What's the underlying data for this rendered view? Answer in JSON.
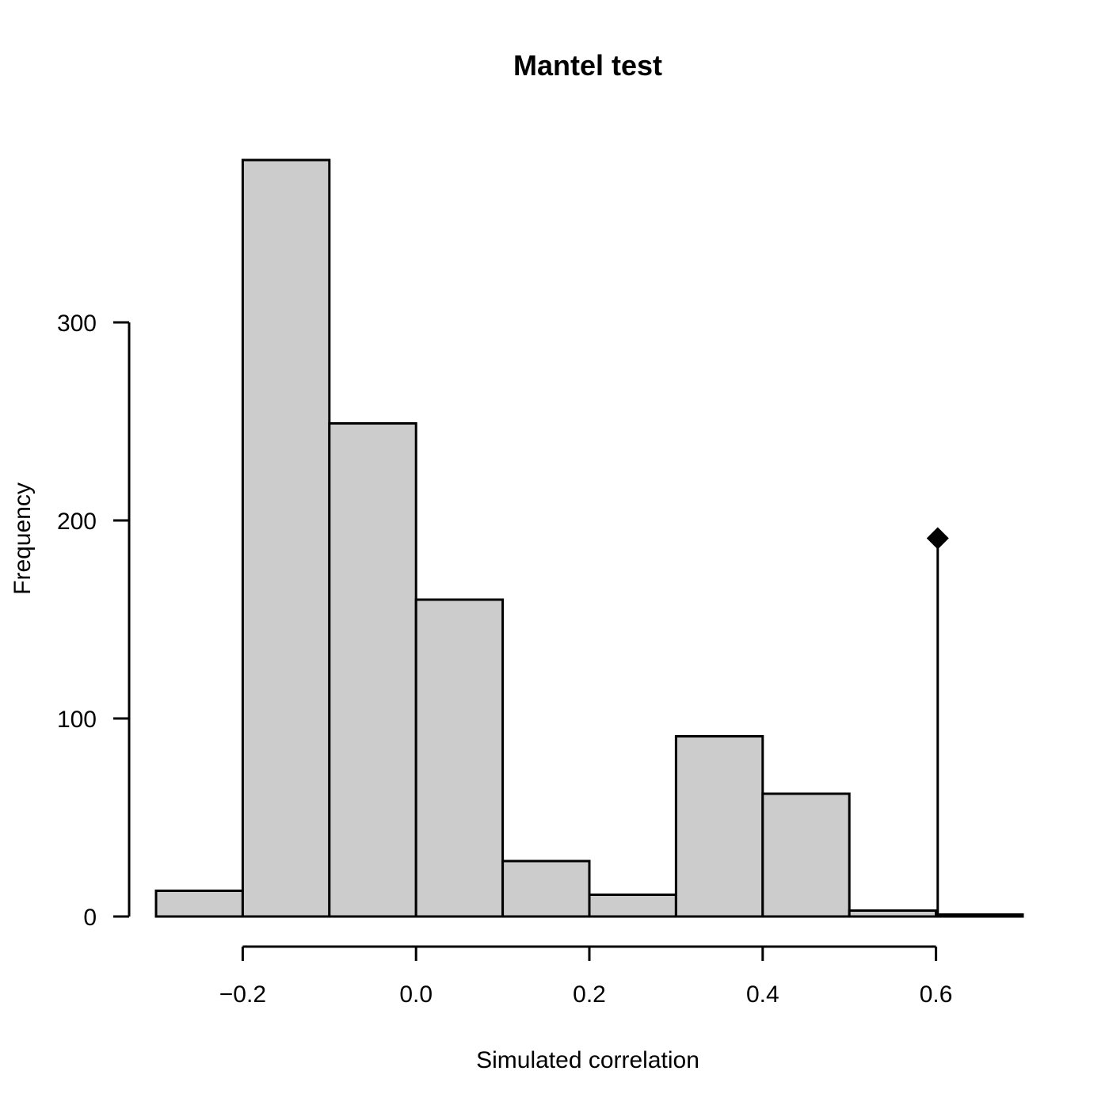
{
  "chart_data": {
    "type": "bar",
    "title": "Mantel test",
    "xlabel": "Simulated correlation",
    "ylabel": "Frequency",
    "bins": [
      {
        "from": -0.3,
        "to": -0.2,
        "count": 13
      },
      {
        "from": -0.2,
        "to": -0.1,
        "count": 382
      },
      {
        "from": -0.1,
        "to": 0.0,
        "count": 249
      },
      {
        "from": 0.0,
        "to": 0.1,
        "count": 160
      },
      {
        "from": 0.1,
        "to": 0.2,
        "count": 28
      },
      {
        "from": 0.2,
        "to": 0.3,
        "count": 11
      },
      {
        "from": 0.3,
        "to": 0.4,
        "count": 91
      },
      {
        "from": 0.4,
        "to": 0.5,
        "count": 62
      },
      {
        "from": 0.5,
        "to": 0.6,
        "count": 3
      },
      {
        "from": 0.6,
        "to": 0.7,
        "count": 1
      }
    ],
    "observed": {
      "value": 0.602,
      "marker_height": 191
    },
    "xlim": [
      -0.3,
      0.7
    ],
    "ylim": [
      0,
      382
    ],
    "xticks": [
      -0.2,
      0.0,
      0.2,
      0.4,
      0.6
    ],
    "xtick_labels": [
      "−0.2",
      "0.0",
      "0.2",
      "0.4",
      "0.6"
    ],
    "yticks": [
      0,
      100,
      200,
      300
    ],
    "ytick_labels": [
      "0",
      "100",
      "200",
      "300"
    ],
    "grid": false,
    "legend": "none"
  }
}
